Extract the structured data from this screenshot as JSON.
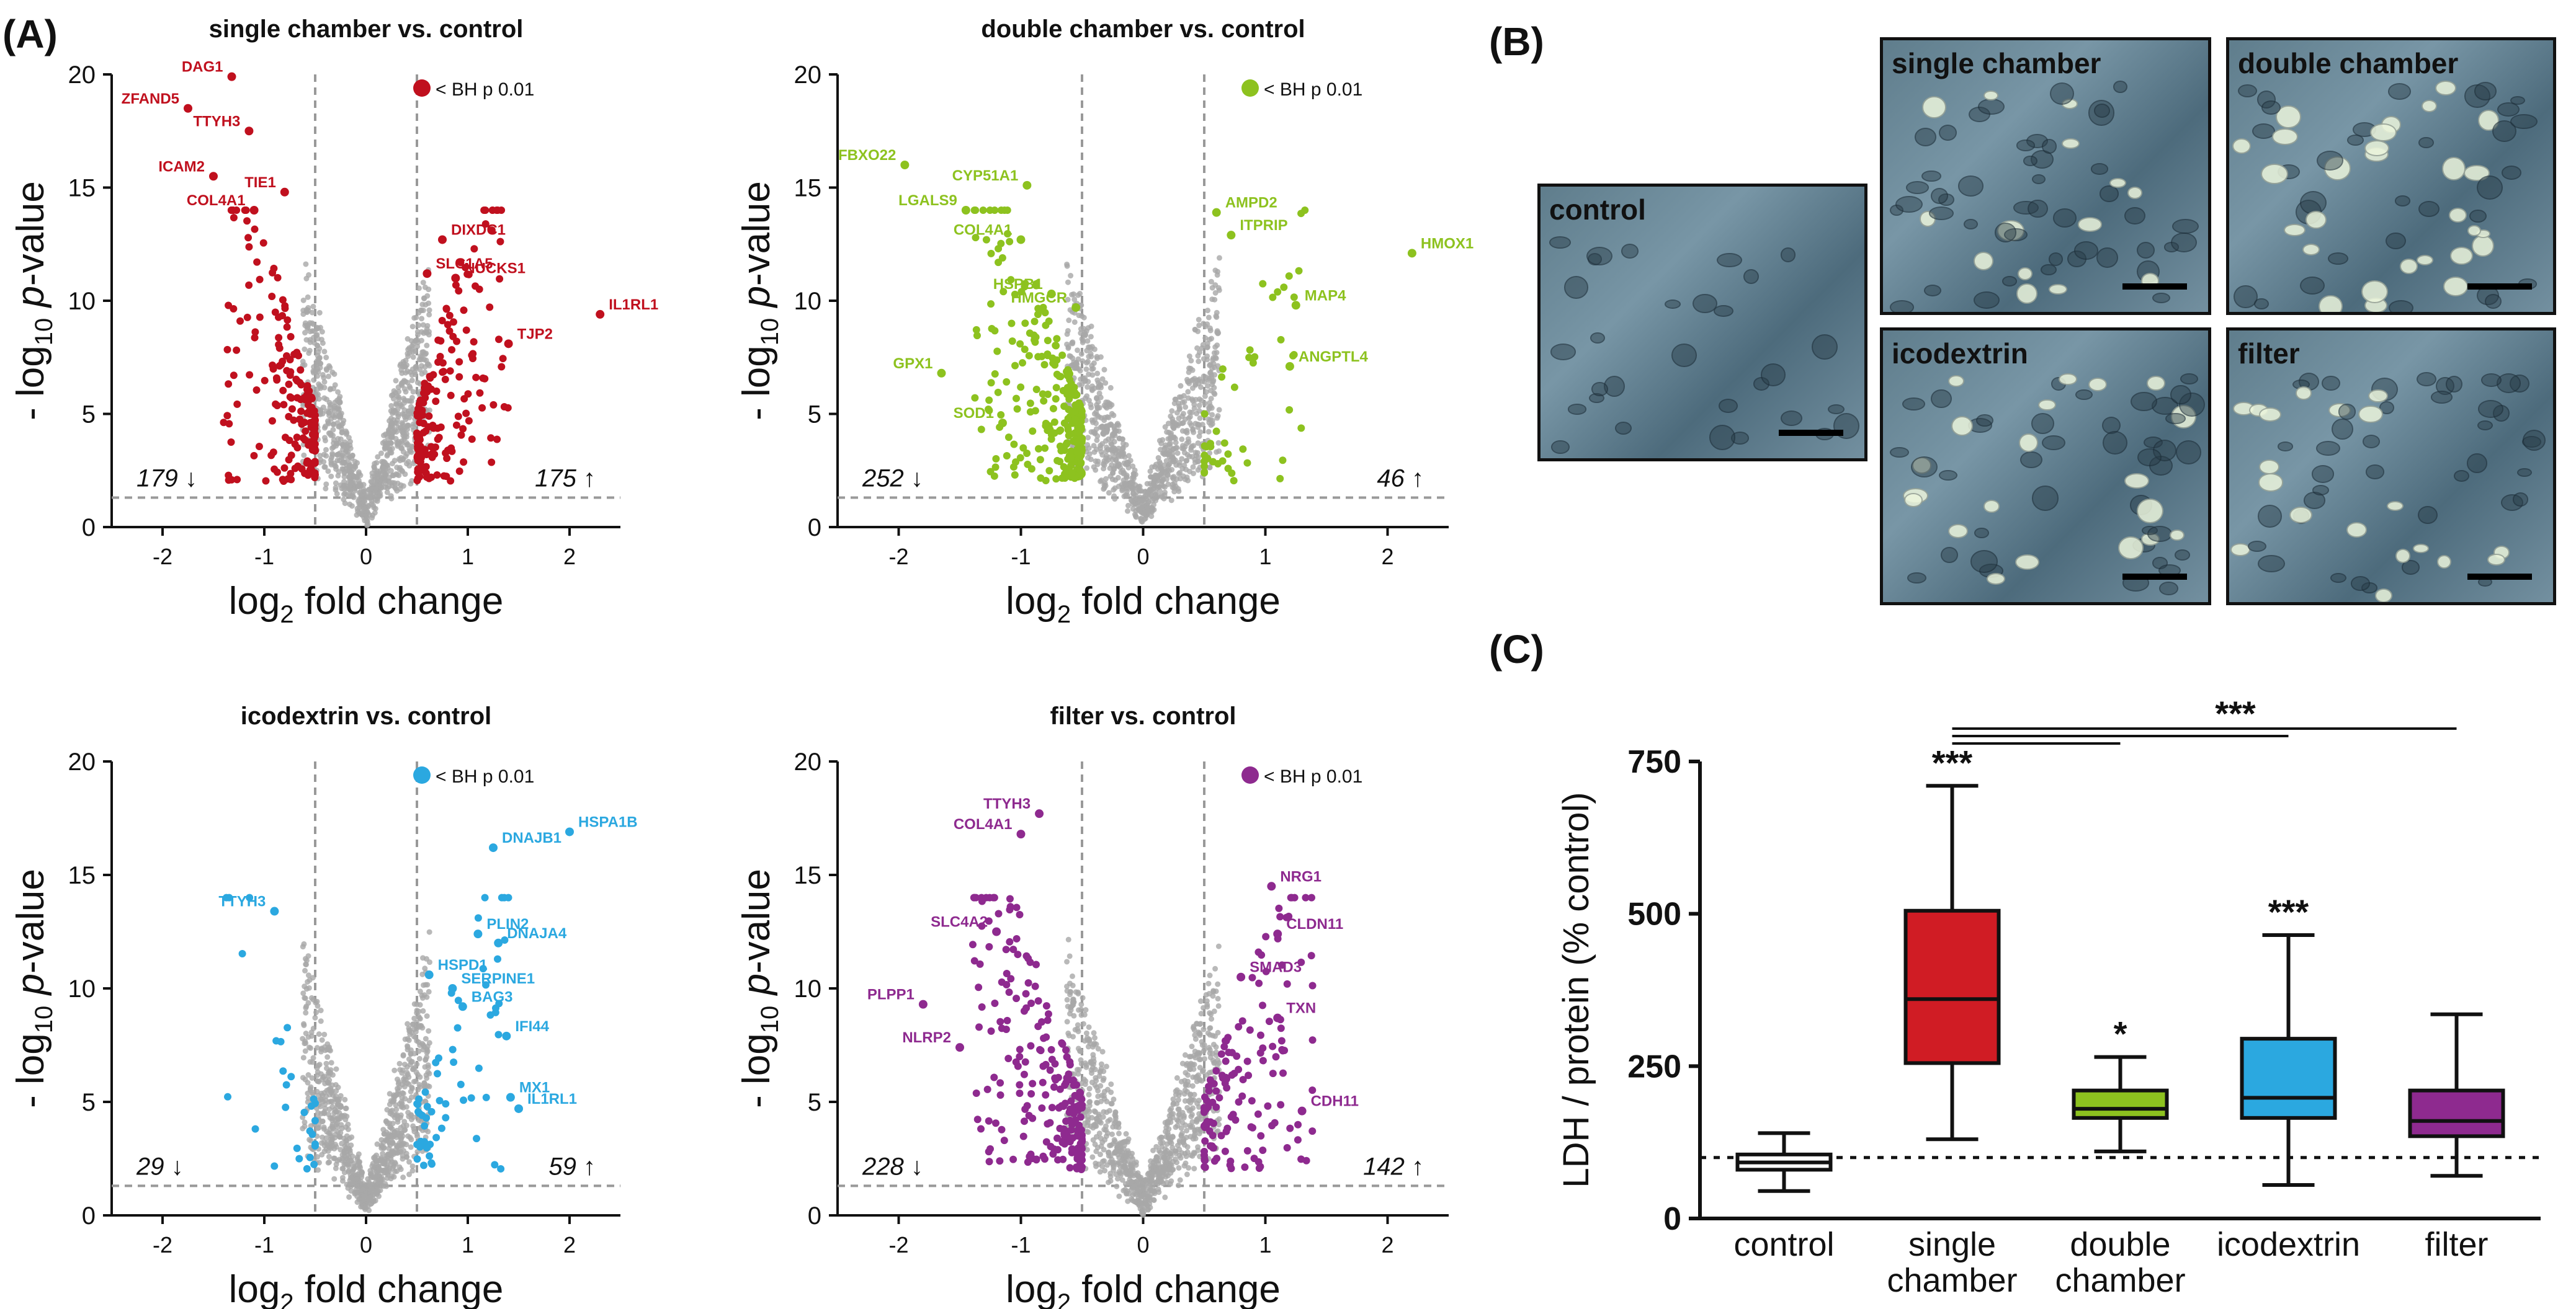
{
  "panel_labels": {
    "a": "(A)",
    "b": "(B)",
    "c": "(C)"
  },
  "volcano_common": {
    "xlabel_main": "log",
    "xlabel_sub": "2",
    "xlabel_rest": " fold change",
    "ylabel_pre": "- log",
    "ylabel_sub": "10",
    "ylabel_italic": "p",
    "ylabel_rest": "-value",
    "legend_text": "< BH p 0.01",
    "x_ticks": [
      "-2",
      "-1",
      "0",
      "1",
      "2"
    ],
    "y_ticks": [
      "0",
      "5",
      "10",
      "15",
      "20"
    ],
    "grey": "#a8a8a8"
  },
  "chart_data": [
    {
      "id": "v1",
      "type": "scatter",
      "title": "single chamber vs. control",
      "xlim": [
        -2.5,
        2.5
      ],
      "ylim": [
        0,
        20
      ],
      "fold_thresholds": [
        -0.5,
        0.5
      ],
      "p_threshold": 1.3,
      "color": "#c0101e",
      "down_count": "179 ↓",
      "up_count": "175 ↑",
      "down_n": 179,
      "up_n": 175,
      "labeled": [
        {
          "gene": "DAG1",
          "x": -1.32,
          "y": 19.9
        },
        {
          "gene": "ZFAND5",
          "x": -1.75,
          "y": 18.5
        },
        {
          "gene": "TTYH3",
          "x": -1.15,
          "y": 17.5
        },
        {
          "gene": "ICAM2",
          "x": -1.5,
          "y": 15.5
        },
        {
          "gene": "TIE1",
          "x": -0.8,
          "y": 14.8
        },
        {
          "gene": "COL4A1",
          "x": -1.1,
          "y": 14.0
        },
        {
          "gene": "DIXDC1",
          "x": 0.75,
          "y": 12.7
        },
        {
          "gene": "SLC1A5",
          "x": 0.6,
          "y": 11.2
        },
        {
          "gene": "NUCKS1",
          "x": 0.88,
          "y": 11.0
        },
        {
          "gene": "IL1RL1",
          "x": 2.3,
          "y": 9.4
        },
        {
          "gene": "TJP2",
          "x": 1.4,
          "y": 8.1
        }
      ]
    },
    {
      "id": "v2",
      "type": "scatter",
      "title": "double chamber vs. control",
      "xlim": [
        -2.5,
        2.5
      ],
      "ylim": [
        0,
        20
      ],
      "fold_thresholds": [
        -0.5,
        0.5
      ],
      "p_threshold": 1.3,
      "color": "#8dc21f",
      "down_count": "252 ↓",
      "up_count": "46 ↑",
      "down_n": 252,
      "up_n": 46,
      "labeled": [
        {
          "gene": "FBXO22",
          "x": -1.95,
          "y": 16.0
        },
        {
          "gene": "CYP51A1",
          "x": -0.95,
          "y": 15.1
        },
        {
          "gene": "LGALS9",
          "x": -1.45,
          "y": 14.0
        },
        {
          "gene": "COL4A1",
          "x": -1.0,
          "y": 12.7
        },
        {
          "gene": "HSPB1",
          "x": -0.75,
          "y": 10.3
        },
        {
          "gene": "HMGCR",
          "x": -0.55,
          "y": 9.7
        },
        {
          "gene": "GPX1",
          "x": -1.65,
          "y": 6.8
        },
        {
          "gene": "SOD1",
          "x": -1.15,
          "y": 4.6
        },
        {
          "gene": "AMPD2",
          "x": 0.6,
          "y": 13.9
        },
        {
          "gene": "ITPRIP",
          "x": 0.72,
          "y": 12.9
        },
        {
          "gene": "HMOX1",
          "x": 2.2,
          "y": 12.1
        },
        {
          "gene": "MAP4",
          "x": 1.25,
          "y": 9.8
        },
        {
          "gene": "ANGPTL4",
          "x": 1.2,
          "y": 7.1
        }
      ]
    },
    {
      "id": "v3",
      "type": "scatter",
      "title": "icodextrin vs. control",
      "xlim": [
        -2.5,
        2.5
      ],
      "ylim": [
        0,
        20
      ],
      "fold_thresholds": [
        -0.5,
        0.5
      ],
      "p_threshold": 1.3,
      "color": "#2ba8e0",
      "down_count": "29 ↓",
      "up_count": "59 ↑",
      "down_n": 29,
      "up_n": 59,
      "labeled": [
        {
          "gene": "TTYH3",
          "x": -0.9,
          "y": 13.4
        },
        {
          "gene": "HSPA1B",
          "x": 2.0,
          "y": 16.9
        },
        {
          "gene": "DNAJB1",
          "x": 1.25,
          "y": 16.2
        },
        {
          "gene": "PLIN2",
          "x": 1.1,
          "y": 12.4
        },
        {
          "gene": "DNAJA4",
          "x": 1.3,
          "y": 12.0
        },
        {
          "gene": "HSPD1",
          "x": 0.62,
          "y": 10.6
        },
        {
          "gene": "SERPINE1",
          "x": 0.85,
          "y": 10.0
        },
        {
          "gene": "BAG3",
          "x": 0.95,
          "y": 9.2
        },
        {
          "gene": "IFI44",
          "x": 1.38,
          "y": 7.9
        },
        {
          "gene": "MX1",
          "x": 1.42,
          "y": 5.2
        },
        {
          "gene": "IL1RL1",
          "x": 1.5,
          "y": 4.7
        }
      ]
    },
    {
      "id": "v4",
      "type": "scatter",
      "title": "filter vs. control",
      "xlim": [
        -2.5,
        2.5
      ],
      "ylim": [
        0,
        20
      ],
      "fold_thresholds": [
        -0.5,
        0.5
      ],
      "p_threshold": 1.3,
      "color": "#8e2a8f",
      "down_count": "228 ↓",
      "up_count": "142 ↑",
      "down_n": 228,
      "up_n": 142,
      "labeled": [
        {
          "gene": "TTYH3",
          "x": -0.85,
          "y": 17.7
        },
        {
          "gene": "COL4A1",
          "x": -1.0,
          "y": 16.8
        },
        {
          "gene": "SLC4A2",
          "x": -1.2,
          "y": 12.5
        },
        {
          "gene": "PLPP1",
          "x": -1.8,
          "y": 9.3
        },
        {
          "gene": "NLRP2",
          "x": -1.5,
          "y": 7.4
        },
        {
          "gene": "NRG1",
          "x": 1.05,
          "y": 14.5
        },
        {
          "gene": "CLDN11",
          "x": 1.1,
          "y": 12.4
        },
        {
          "gene": "SMAD3",
          "x": 0.8,
          "y": 10.5
        },
        {
          "gene": "TXN",
          "x": 1.1,
          "y": 8.7
        },
        {
          "gene": "CDH11",
          "x": 1.3,
          "y": 4.6
        }
      ]
    },
    {
      "id": "box",
      "type": "box",
      "ylabel": "LDH / protein (% control)",
      "ylim": [
        0,
        750
      ],
      "y_ticks": [
        "0",
        "250",
        "500",
        "750"
      ],
      "reference_line": 100,
      "categories": [
        {
          "label1": "control",
          "label2": "",
          "color": "#ffffff",
          "min": 45,
          "q1": 80,
          "median": 92,
          "q3": 105,
          "max": 140,
          "sig": ""
        },
        {
          "label1": "single",
          "label2": "chamber",
          "color": "#d01c24",
          "min": 130,
          "q1": 255,
          "median": 360,
          "q3": 505,
          "max": 710,
          "sig": "***"
        },
        {
          "label1": "double",
          "label2": "chamber",
          "color": "#8dc21f",
          "min": 110,
          "q1": 165,
          "median": 180,
          "q3": 210,
          "max": 265,
          "sig": "*"
        },
        {
          "label1": "icodextrin",
          "label2": "",
          "color": "#2ba8e0",
          "min": 55,
          "q1": 165,
          "median": 198,
          "q3": 295,
          "max": 465,
          "sig": "***"
        },
        {
          "label1": "filter",
          "label2": "",
          "color": "#8e2a8f",
          "min": 70,
          "q1": 135,
          "median": 160,
          "q3": 210,
          "max": 335,
          "sig": ""
        }
      ],
      "bracket_sig": "***"
    }
  ],
  "micrographs": [
    {
      "id": "control",
      "label": "control"
    },
    {
      "id": "single",
      "label": "single chamber"
    },
    {
      "id": "double",
      "label": "double chamber"
    },
    {
      "id": "icodextrin",
      "label": "icodextrin"
    },
    {
      "id": "filter",
      "label": "filter"
    }
  ]
}
